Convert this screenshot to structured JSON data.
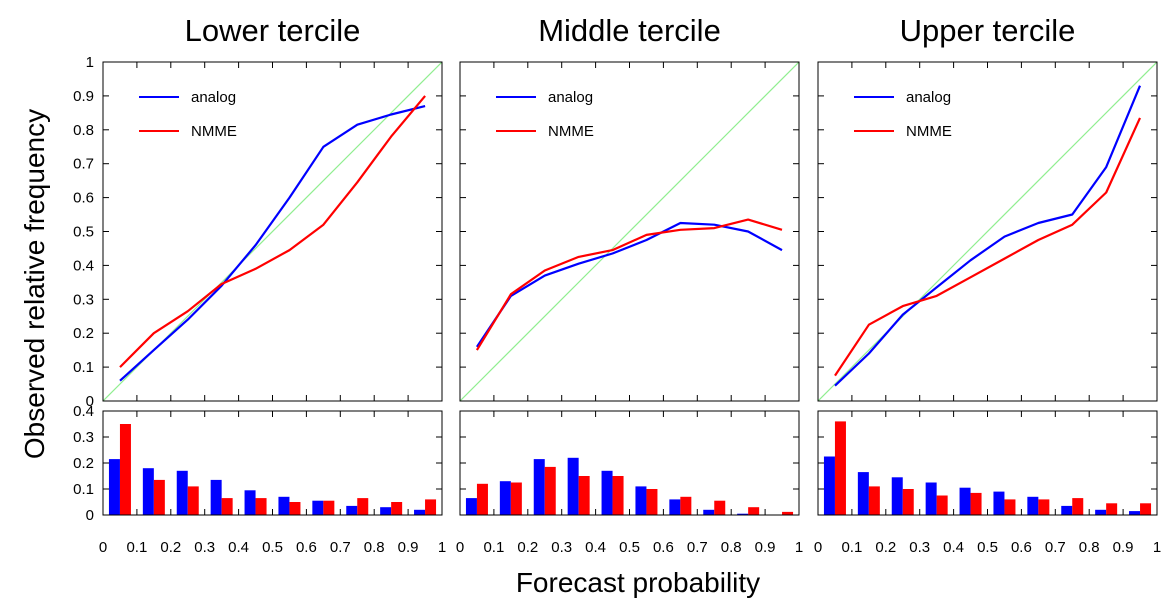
{
  "figure": {
    "xlabel": "Forecast probability",
    "ylabel": "Observed relative frequency"
  },
  "colors": {
    "analog": "#0000ff",
    "NMME": "#ff0000",
    "diagonal": "#90ee90",
    "frame": "#000000"
  },
  "chart_data": [
    {
      "type": "line",
      "title": "Lower tercile",
      "xlim": [
        0,
        1
      ],
      "ylim": [
        0,
        1
      ],
      "yticks": [
        "0",
        "0.1",
        "0.2",
        "0.3",
        "0.4",
        "0.5",
        "0.6",
        "0.7",
        "0.8",
        "0.9",
        "1"
      ],
      "legend_placement": "top-left",
      "diagonal": true,
      "series": [
        {
          "name": "analog",
          "x": [
            0.05,
            0.15,
            0.25,
            0.35,
            0.45,
            0.55,
            0.65,
            0.75,
            0.85,
            0.95
          ],
          "values": [
            0.06,
            0.15,
            0.24,
            0.34,
            0.46,
            0.6,
            0.75,
            0.815,
            0.845,
            0.87
          ]
        },
        {
          "name": "NMME",
          "x": [
            0.05,
            0.15,
            0.25,
            0.35,
            0.45,
            0.55,
            0.65,
            0.75,
            0.85,
            0.95
          ],
          "values": [
            0.1,
            0.2,
            0.265,
            0.345,
            0.39,
            0.445,
            0.52,
            0.645,
            0.78,
            0.9
          ]
        }
      ],
      "histogram": {
        "type": "bar",
        "ylim": [
          0,
          0.4
        ],
        "yticks": [
          "0",
          "0.1",
          "0.2",
          "0.3",
          "0.4"
        ],
        "xticks": [
          "0",
          "0.1",
          "0.2",
          "0.3",
          "0.4",
          "0.5",
          "0.6",
          "0.7",
          "0.8",
          "0.9",
          "1"
        ],
        "categories": [
          0.05,
          0.15,
          0.25,
          0.35,
          0.45,
          0.55,
          0.65,
          0.75,
          0.85,
          0.95
        ],
        "series": [
          {
            "name": "analog",
            "values": [
              0.215,
              0.18,
              0.17,
              0.135,
              0.095,
              0.07,
              0.055,
              0.035,
              0.03,
              0.02
            ]
          },
          {
            "name": "NMME",
            "values": [
              0.35,
              0.135,
              0.11,
              0.065,
              0.065,
              0.05,
              0.055,
              0.065,
              0.05,
              0.06
            ]
          }
        ]
      }
    },
    {
      "type": "line",
      "title": "Middle tercile",
      "xlim": [
        0,
        1
      ],
      "ylim": [
        0,
        1
      ],
      "legend_placement": "top-left",
      "diagonal": true,
      "series": [
        {
          "name": "analog",
          "x": [
            0.05,
            0.15,
            0.25,
            0.35,
            0.45,
            0.55,
            0.65,
            0.75,
            0.85,
            0.95
          ],
          "values": [
            0.16,
            0.31,
            0.37,
            0.405,
            0.435,
            0.475,
            0.525,
            0.52,
            0.5,
            0.445
          ]
        },
        {
          "name": "NMME",
          "x": [
            0.05,
            0.15,
            0.25,
            0.35,
            0.45,
            0.55,
            0.65,
            0.75,
            0.85,
            0.95
          ],
          "values": [
            0.15,
            0.315,
            0.385,
            0.425,
            0.445,
            0.49,
            0.505,
            0.51,
            0.535,
            0.505
          ]
        }
      ],
      "histogram": {
        "type": "bar",
        "ylim": [
          0,
          0.4
        ],
        "xticks": [
          "0",
          "0.1",
          "0.2",
          "0.3",
          "0.4",
          "0.5",
          "0.6",
          "0.7",
          "0.8",
          "0.9",
          "1"
        ],
        "categories": [
          0.05,
          0.15,
          0.25,
          0.35,
          0.45,
          0.55,
          0.65,
          0.75,
          0.85,
          0.95
        ],
        "series": [
          {
            "name": "analog",
            "values": [
              0.065,
              0.13,
              0.215,
              0.22,
              0.17,
              0.11,
              0.06,
              0.02,
              0.005,
              0.0
            ]
          },
          {
            "name": "NMME",
            "values": [
              0.12,
              0.125,
              0.185,
              0.15,
              0.15,
              0.1,
              0.07,
              0.055,
              0.03,
              0.012
            ]
          }
        ]
      }
    },
    {
      "type": "line",
      "title": "Upper tercile",
      "xlim": [
        0,
        1
      ],
      "ylim": [
        0,
        1
      ],
      "legend_placement": "top-left",
      "diagonal": true,
      "series": [
        {
          "name": "analog",
          "x": [
            0.05,
            0.15,
            0.25,
            0.35,
            0.45,
            0.55,
            0.65,
            0.75,
            0.85,
            0.95
          ],
          "values": [
            0.045,
            0.14,
            0.255,
            0.335,
            0.415,
            0.485,
            0.525,
            0.55,
            0.69,
            0.93
          ]
        },
        {
          "name": "NMME",
          "x": [
            0.05,
            0.15,
            0.25,
            0.35,
            0.45,
            0.55,
            0.65,
            0.75,
            0.85,
            0.95
          ],
          "values": [
            0.075,
            0.225,
            0.28,
            0.31,
            0.365,
            0.42,
            0.475,
            0.52,
            0.615,
            0.835
          ]
        }
      ],
      "histogram": {
        "type": "bar",
        "ylim": [
          0,
          0.4
        ],
        "xticks": [
          "0",
          "0.1",
          "0.2",
          "0.3",
          "0.4",
          "0.5",
          "0.6",
          "0.7",
          "0.8",
          "0.9",
          "1"
        ],
        "categories": [
          0.05,
          0.15,
          0.25,
          0.35,
          0.45,
          0.55,
          0.65,
          0.75,
          0.85,
          0.95
        ],
        "series": [
          {
            "name": "analog",
            "values": [
              0.225,
              0.165,
              0.145,
              0.125,
              0.105,
              0.09,
              0.07,
              0.035,
              0.02,
              0.015
            ]
          },
          {
            "name": "NMME",
            "values": [
              0.36,
              0.11,
              0.1,
              0.075,
              0.085,
              0.06,
              0.06,
              0.065,
              0.045,
              0.045
            ]
          }
        ]
      }
    }
  ]
}
